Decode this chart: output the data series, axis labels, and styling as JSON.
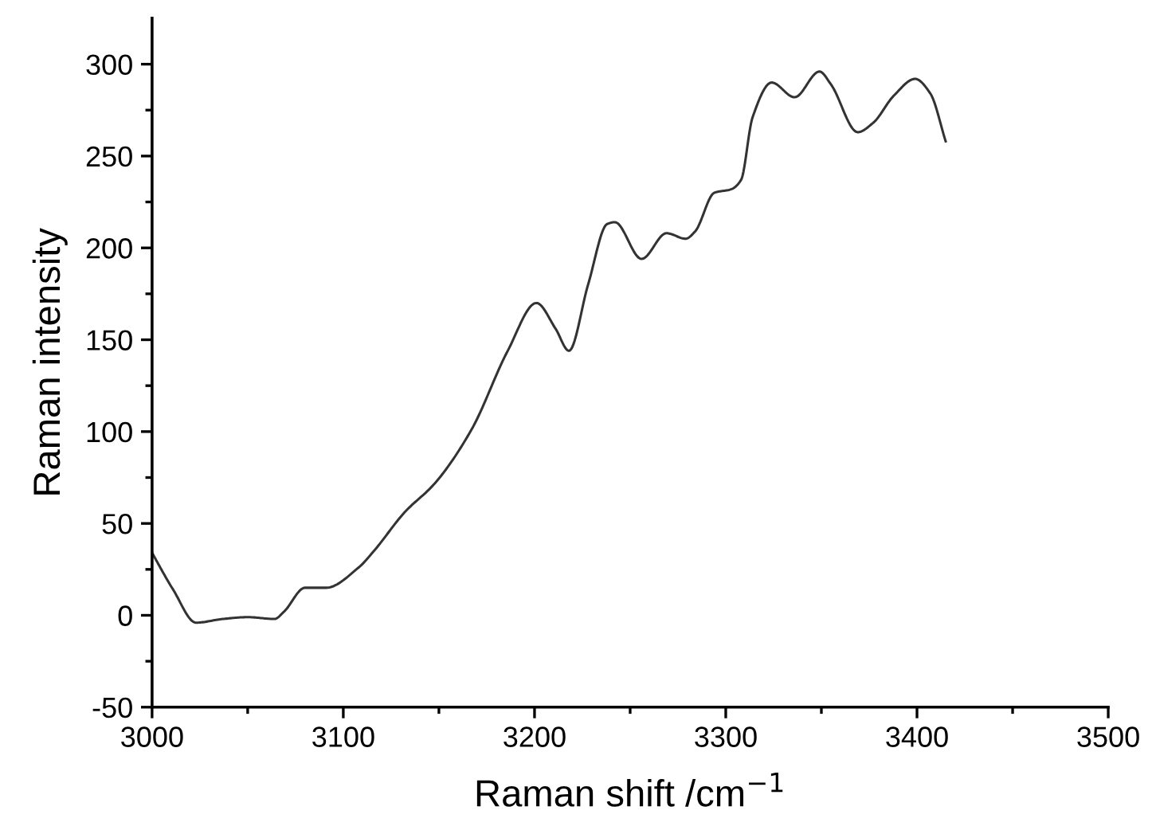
{
  "chart_data": {
    "type": "line",
    "xlabel": "Raman shift /cm$^{−1}$",
    "ylabel": "Raman intensity",
    "xlim": [
      3000,
      3500
    ],
    "ylim": [
      -50,
      325
    ],
    "xticks": [
      3000,
      {
        "value": 3050,
        "label": null
      },
      3100,
      {
        "value": 3150,
        "label": null
      },
      3200,
      {
        "value": 3250,
        "label": null
      },
      3300,
      {
        "value": 3350,
        "label": null
      },
      3400,
      {
        "value": 3450,
        "label": null
      },
      3500
    ],
    "yticks": [
      -50,
      {
        "value": -25,
        "label": null
      },
      0,
      {
        "value": 25,
        "label": null
      },
      50,
      {
        "value": 75,
        "label": null
      },
      100,
      {
        "value": 125,
        "label": null
      },
      150,
      {
        "value": 175,
        "label": null
      },
      200,
      {
        "value": 225,
        "label": null
      },
      250,
      {
        "value": 275,
        "label": null
      },
      300
    ],
    "grid": false,
    "legend": false,
    "marker": "none",
    "line_style": "solid",
    "series": [
      {
        "color": "#333333",
        "x": [
          3000,
          3011,
          3023,
          3037,
          3050,
          3064,
          3069,
          3080,
          3091,
          3108,
          3116,
          3132,
          3148,
          3167,
          3186,
          3201,
          3211,
          3218,
          3228,
          3238,
          3242,
          3256,
          3269,
          3279,
          3284,
          3294,
          3303,
          3308,
          3314,
          3324,
          3336,
          3349,
          3355,
          3369,
          3377,
          3388,
          3399,
          3407,
          3415
        ],
        "values": [
          34,
          14,
          -4,
          -2,
          -1,
          -2,
          2,
          15,
          15,
          26,
          35,
          56,
          72,
          101,
          144,
          170,
          156,
          144,
          180,
          213,
          214,
          194,
          208,
          205,
          209,
          230,
          232,
          237,
          271,
          290,
          282,
          296,
          289,
          263,
          268,
          283,
          292,
          284,
          258
        ]
      }
    ]
  }
}
